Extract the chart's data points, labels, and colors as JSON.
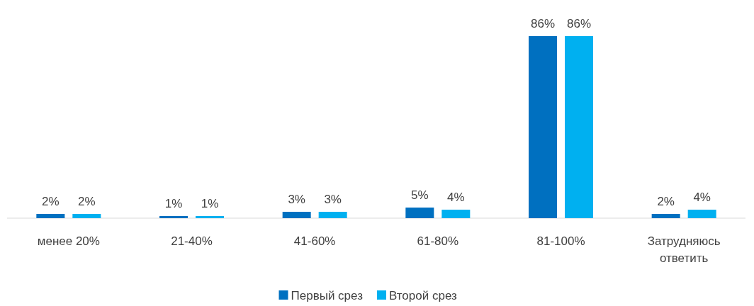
{
  "chart_data": {
    "type": "bar",
    "categories": [
      "менее 20%",
      "21-40%",
      "41-60%",
      "61-80%",
      "81-100%",
      "Затрудняюсь ответить"
    ],
    "series": [
      {
        "name": "Первый срез",
        "color": "#0070c0",
        "values": [
          2,
          1,
          3,
          5,
          86,
          2
        ],
        "value_labels": [
          "2%",
          "1%",
          "3%",
          "5%",
          "86%",
          "2%"
        ]
      },
      {
        "name": "Второй срез",
        "color": "#00b0f0",
        "values": [
          2,
          1,
          3,
          4,
          86,
          4
        ],
        "value_labels": [
          "2%",
          "1%",
          "3%",
          "4%",
          "86%",
          "4%"
        ]
      }
    ],
    "legend": "bottom"
  }
}
